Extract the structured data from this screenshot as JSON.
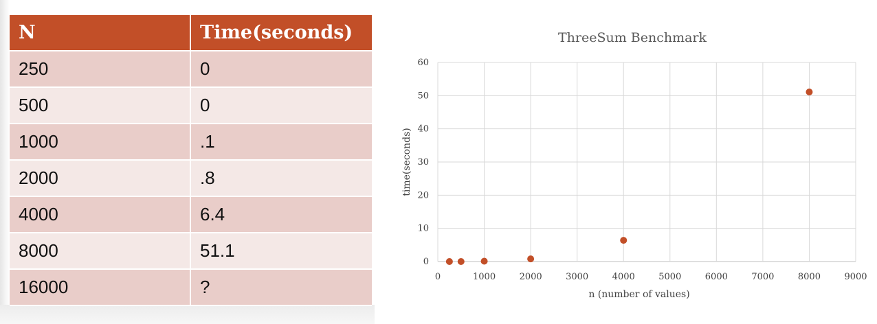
{
  "table": {
    "headers": [
      "N",
      "Time(seconds)"
    ],
    "rows": [
      [
        "250",
        "0"
      ],
      [
        "500",
        "0"
      ],
      [
        "1000",
        ".1"
      ],
      [
        "2000",
        ".8"
      ],
      [
        "4000",
        "6.4"
      ],
      [
        "8000",
        "51.1"
      ],
      [
        "16000",
        "?"
      ]
    ]
  },
  "chart_data": {
    "type": "scatter",
    "title": "ThreeSum Benchmark",
    "xlabel": "n (number of values)",
    "ylabel": "time(seconds)",
    "xlim": [
      0,
      9000
    ],
    "ylim": [
      0,
      60
    ],
    "xticks": [
      0,
      1000,
      2000,
      3000,
      4000,
      5000,
      6000,
      7000,
      8000,
      9000
    ],
    "yticks": [
      0,
      10,
      20,
      30,
      40,
      50,
      60
    ],
    "grid": true,
    "marker_color": "#c24f28",
    "x": [
      250,
      500,
      1000,
      2000,
      4000,
      8000
    ],
    "y": [
      0,
      0,
      0.1,
      0.8,
      6.4,
      51.1
    ]
  }
}
